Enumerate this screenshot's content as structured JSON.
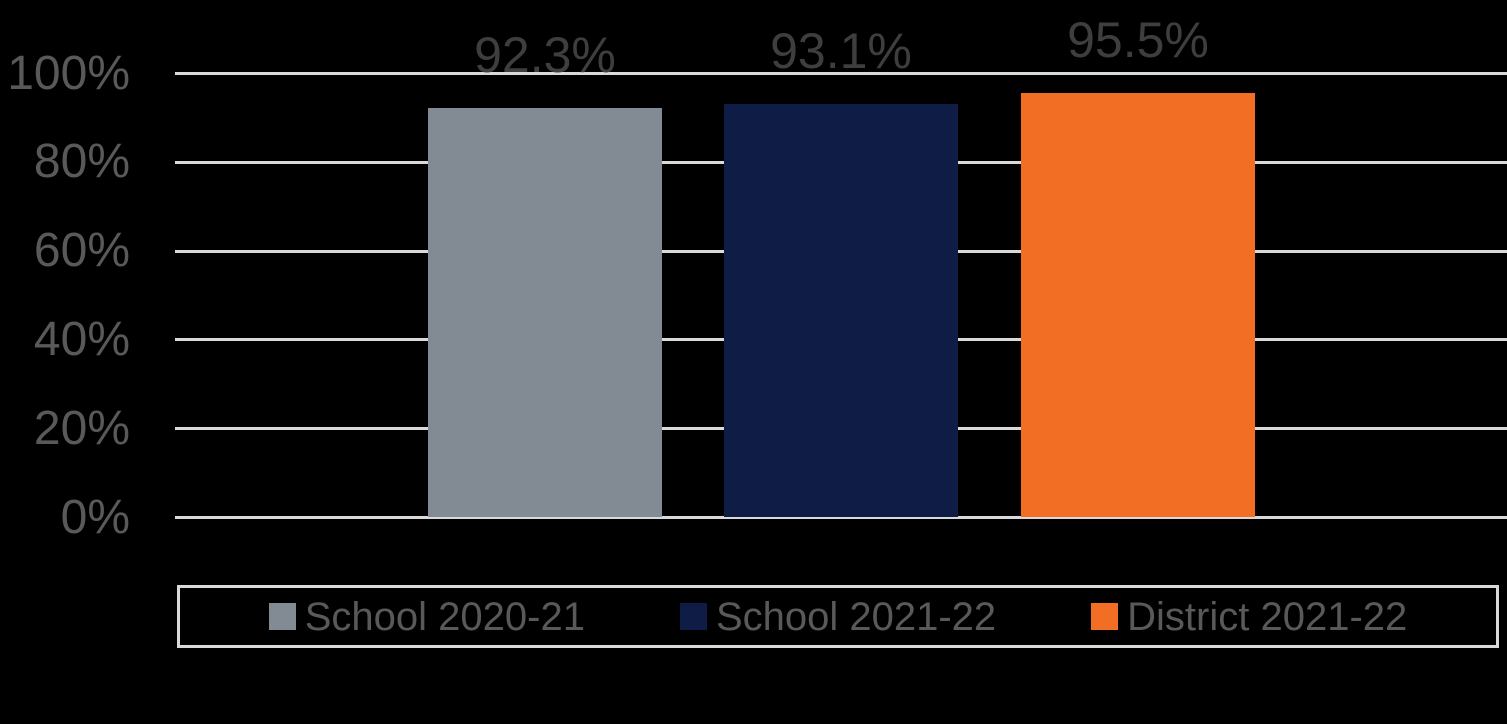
{
  "chart_data": {
    "type": "bar",
    "series": [
      {
        "name": "School 2020-21",
        "values": [
          92.3
        ],
        "data_label": "92.3%",
        "color": "#828A94"
      },
      {
        "name": "School 2021-22",
        "values": [
          93.1
        ],
        "data_label": "93.1%",
        "color": "#0E1C46"
      },
      {
        "name": "District 2021-22",
        "values": [
          95.5
        ],
        "data_label": "95.5%",
        "color": "#F26E24"
      }
    ],
    "ylim": [
      0,
      100
    ],
    "yticks": [
      "0%",
      "20%",
      "40%",
      "60%",
      "80%",
      "100%"
    ],
    "grid": true,
    "legend_position": "bottom",
    "data_labels_position": "outside-end"
  },
  "colors": {
    "background": "#000000",
    "gridline": "#D9D9D9",
    "axis_text": "#595959",
    "data_label_text": "#3E3E3E",
    "legend_text": "#58595B",
    "legend_border": "#D9D9D9"
  }
}
